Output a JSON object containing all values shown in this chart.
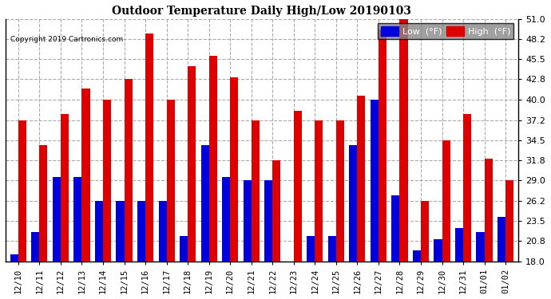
{
  "title": "Outdoor Temperature Daily High/Low 20190103",
  "copyright": "Copyright 2019 Cartronics.com",
  "legend_low": "Low  (°F)",
  "legend_high": "High  (°F)",
  "low_color": "#0000dd",
  "high_color": "#dd0000",
  "background_color": "#ffffff",
  "ylim": [
    18.0,
    51.0
  ],
  "yticks": [
    18.0,
    20.8,
    23.5,
    26.2,
    29.0,
    31.8,
    34.5,
    37.2,
    40.0,
    42.8,
    45.5,
    48.2,
    51.0
  ],
  "grid_color": "#aaaaaa",
  "dates": [
    "12/10",
    "12/11",
    "12/12",
    "12/13",
    "12/14",
    "12/15",
    "12/16",
    "12/17",
    "12/18",
    "12/19",
    "12/20",
    "12/21",
    "12/22",
    "12/23",
    "12/24",
    "12/25",
    "12/26",
    "12/27",
    "12/28",
    "12/29",
    "12/30",
    "12/31",
    "01/01",
    "01/02"
  ],
  "high_temps": [
    37.2,
    33.8,
    38.0,
    41.5,
    40.0,
    42.8,
    49.0,
    40.0,
    44.5,
    46.0,
    43.0,
    37.2,
    31.8,
    38.5,
    37.2,
    37.2,
    40.5,
    49.5,
    51.0,
    26.2,
    34.5,
    38.0,
    32.0,
    29.0
  ],
  "low_temps": [
    19.0,
    22.0,
    29.5,
    29.5,
    26.2,
    26.2,
    26.2,
    26.2,
    21.5,
    33.8,
    29.5,
    29.0,
    29.0,
    18.0,
    21.5,
    21.5,
    33.8,
    40.0,
    27.0,
    19.5,
    21.0,
    22.5,
    22.0,
    24.0
  ]
}
